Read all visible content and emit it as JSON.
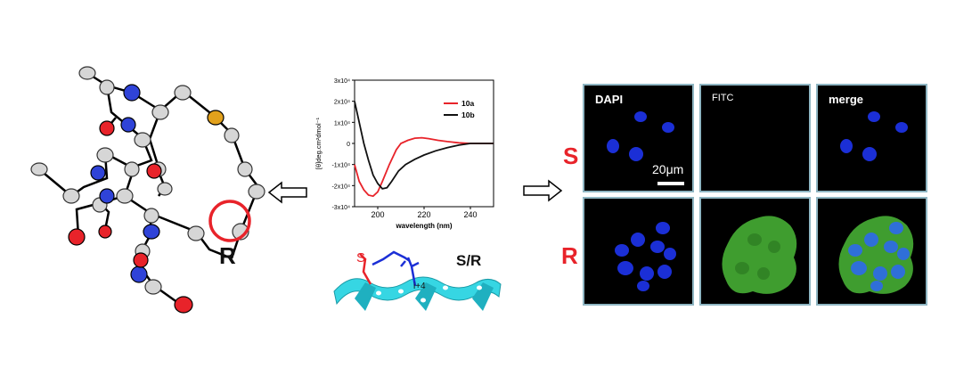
{
  "crystal": {
    "config_label": "R"
  },
  "cd_chart": {
    "x_axis_label": "wavelength (nm)",
    "y_axis_label": "[θ]deg.cm²dmol⁻¹",
    "legend": [
      "10a",
      "10b"
    ]
  },
  "helix": {
    "s_label": "S",
    "i4_label": "i+4",
    "sr_label": "S/R"
  },
  "microscopy": {
    "rows": [
      "S",
      "R"
    ],
    "columns": [
      "DAPI",
      "FITC",
      "merge"
    ],
    "scale_bar_label": "20μm"
  },
  "colors": {
    "accent_red": "#e8232a",
    "panel_border": "#8fb6c3",
    "helix_cyan": "#36d6e3",
    "dapi_blue": "#1b2fd6",
    "fitc_green": "#3f9d2f"
  },
  "chart_data": {
    "type": "line",
    "xlabel": "wavelength (nm)",
    "ylabel": "[θ]deg.cm²dmol⁻¹",
    "xlim": [
      190,
      250
    ],
    "ylim": [
      -30000,
      30000
    ],
    "x_ticks": [
      "200",
      "220",
      "240"
    ],
    "y_ticks": [
      "3x10⁴",
      "2x10⁴",
      "1x10⁴",
      "0",
      "-1x10⁴",
      "-2x10⁴",
      "-3x10⁴"
    ],
    "legend_position": "top-right",
    "series": [
      {
        "name": "10a",
        "color": "#e8232a",
        "points": [
          [
            190,
            -10000
          ],
          [
            192,
            -18000
          ],
          [
            194,
            -22000
          ],
          [
            196,
            -24500
          ],
          [
            198,
            -25000
          ],
          [
            200,
            -23000
          ],
          [
            202,
            -18000
          ],
          [
            205,
            -10000
          ],
          [
            208,
            -3000
          ],
          [
            210,
            0
          ],
          [
            213,
            1500
          ],
          [
            216,
            2500
          ],
          [
            219,
            2700
          ],
          [
            222,
            2300
          ],
          [
            226,
            1500
          ],
          [
            230,
            900
          ],
          [
            235,
            300
          ],
          [
            240,
            0
          ],
          [
            245,
            0
          ],
          [
            250,
            0
          ]
        ]
      },
      {
        "name": "10b",
        "color": "#111111",
        "points": [
          [
            190,
            20000
          ],
          [
            192,
            10000
          ],
          [
            194,
            0
          ],
          [
            196,
            -8000
          ],
          [
            198,
            -15000
          ],
          [
            200,
            -19000
          ],
          [
            202,
            -21500
          ],
          [
            204,
            -21000
          ],
          [
            206,
            -18000
          ],
          [
            209,
            -13000
          ],
          [
            212,
            -10000
          ],
          [
            216,
            -7500
          ],
          [
            220,
            -5500
          ],
          [
            225,
            -3500
          ],
          [
            230,
            -2000
          ],
          [
            235,
            -800
          ],
          [
            240,
            0
          ],
          [
            245,
            0
          ],
          [
            250,
            0
          ]
        ]
      }
    ]
  }
}
